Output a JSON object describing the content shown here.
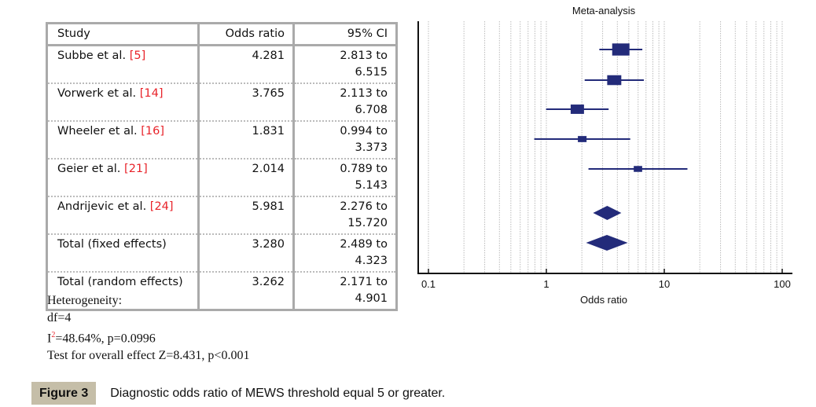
{
  "table": {
    "headers": [
      "Study",
      "Odds ratio",
      "95% CI"
    ],
    "rows": [
      {
        "study": "Subbe et al.",
        "ref": "[5]",
        "or": "4.281",
        "ci_lo": "2.813 to",
        "ci_hi": "6.515"
      },
      {
        "study": "Vorwerk et al.",
        "ref": "[14]",
        "or": "3.765",
        "ci_lo": "2.113 to",
        "ci_hi": "6.708"
      },
      {
        "study": "Wheeler et al.",
        "ref": "[16]",
        "or": "1.831",
        "ci_lo": "0.994 to",
        "ci_hi": "3.373"
      },
      {
        "study": "Geier et al.",
        "ref": "[21]",
        "or": "2.014",
        "ci_lo": "0.789 to",
        "ci_hi": "5.143"
      },
      {
        "study": "Andrijevic et al.",
        "ref": "[24]",
        "or": "5.981",
        "ci_lo": "2.276 to",
        "ci_hi": "15.720"
      },
      {
        "study": "Total (fixed effects)",
        "ref": "",
        "or": "3.280",
        "ci_lo": "2.489 to",
        "ci_hi": "4.323"
      },
      {
        "study": "Total (random effects)",
        "ref": "",
        "or": "3.262",
        "ci_lo": "2.171 to",
        "ci_hi": "4.901"
      }
    ]
  },
  "notes": {
    "heterogeneity": "Heterogeneity:",
    "df": "df=4",
    "i2_label": "I",
    "i2_sup": "2",
    "i2_rest": "=48.64%, p=0.0996",
    "overall": "Test for overall effect Z=8.431, p<0.001"
  },
  "caption": {
    "label": "Figure 3",
    "text": "Diagnostic odds ratio of MEWS threshold equal 5 or greater."
  },
  "chart_data": {
    "type": "forest",
    "title": "Meta-analysis",
    "xlabel": "Odds ratio",
    "xscale": "log",
    "xlim": [
      0.1,
      100
    ],
    "xticks": [
      0.1,
      1,
      10,
      100
    ],
    "xtick_labels": [
      "0.1",
      "1",
      "10",
      "100"
    ],
    "grid": true,
    "color": "#232b7a",
    "studies": [
      {
        "name": "Subbe et al.",
        "or": 4.281,
        "lo": 2.813,
        "hi": 6.515
      },
      {
        "name": "Vorwerk et al.",
        "or": 3.765,
        "lo": 2.113,
        "hi": 6.708
      },
      {
        "name": "Wheeler et al.",
        "or": 1.831,
        "lo": 0.994,
        "hi": 3.373
      },
      {
        "name": "Geier et al.",
        "or": 2.014,
        "lo": 0.789,
        "hi": 5.143
      },
      {
        "name": "Andrijevic et al.",
        "or": 5.981,
        "lo": 2.276,
        "hi": 15.72
      }
    ],
    "pooled": [
      {
        "name": "Total (fixed effects)",
        "or": 3.28,
        "lo": 2.489,
        "hi": 4.323
      },
      {
        "name": "Total (random effects)",
        "or": 3.262,
        "lo": 2.171,
        "hi": 4.901
      }
    ]
  }
}
